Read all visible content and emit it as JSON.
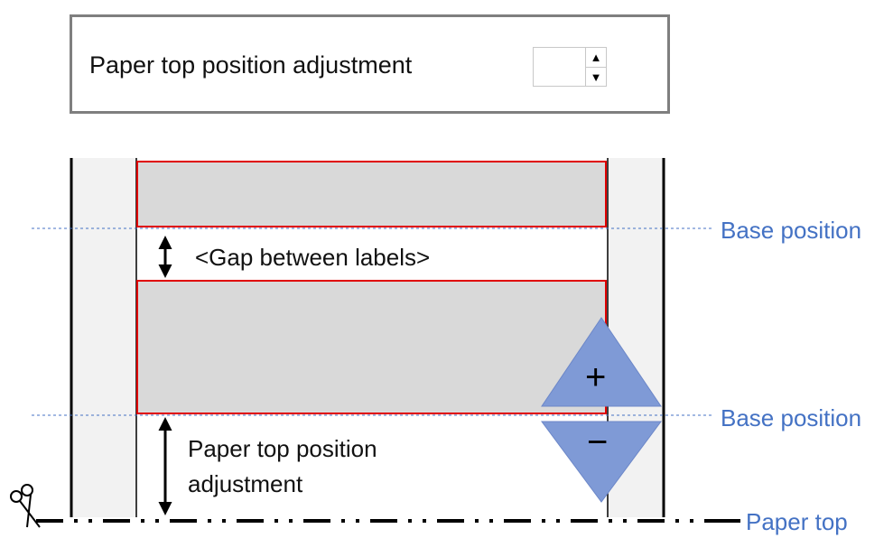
{
  "settings": {
    "label": "Paper top position adjustment",
    "value": ""
  },
  "diagram": {
    "gap_label": "<Gap between labels>",
    "adjust_label_line1": "Paper top position",
    "adjust_label_line2": "adjustment",
    "base_position_upper": "Base position",
    "base_position_lower": "Base position",
    "paper_top": "Paper top",
    "plus_symbol": "+",
    "minus_symbol": "−"
  },
  "colors": {
    "label_fill": "#d9d9d9",
    "label_border": "#e00000",
    "side_fill": "#f2f2f2",
    "guide_blue": "#4472c4",
    "triangle_fill": "#7f9ad6",
    "box_border": "#7f7f7f"
  }
}
